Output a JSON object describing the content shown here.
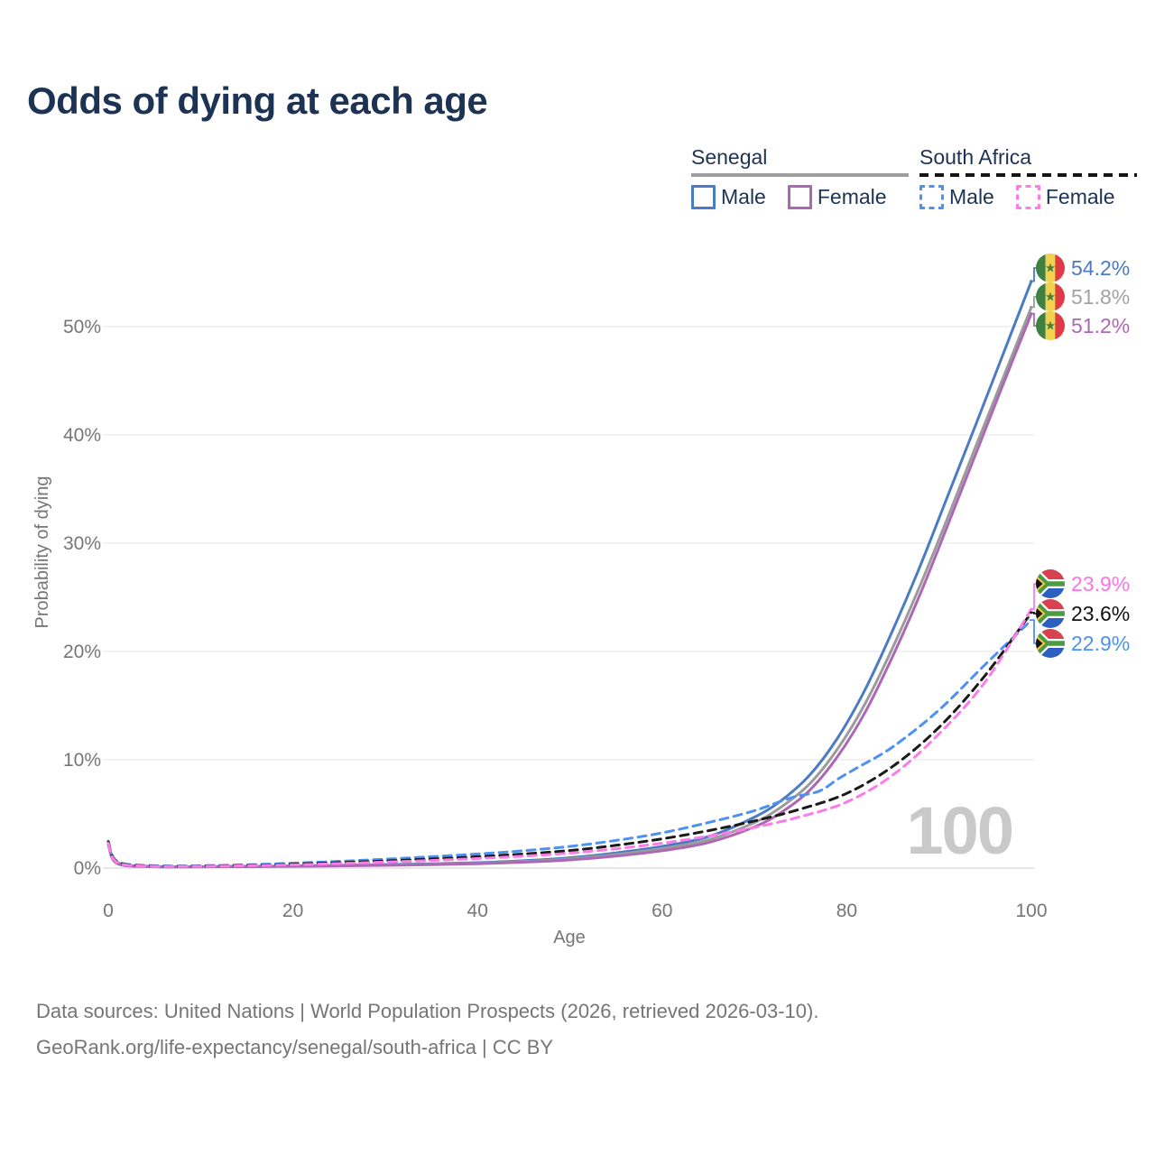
{
  "title": "Odds of dying at each age",
  "legend": {
    "groups": [
      {
        "name": "Senegal",
        "line_style": "solid",
        "underline_color": "#9e9e9e",
        "items": [
          {
            "label": "Male",
            "color": "#4a7bc4"
          },
          {
            "label": "Female",
            "color": "#ad68b5"
          }
        ]
      },
      {
        "name": "South Africa",
        "line_style": "dashed",
        "underline_color": "#141414",
        "items": [
          {
            "label": "Male",
            "color": "#4d92f0"
          },
          {
            "label": "Female",
            "color": "#fb7ce8"
          }
        ]
      }
    ]
  },
  "watermark_age": "100",
  "axes": {
    "x": {
      "label": "Age",
      "ticks": [
        0,
        20,
        40,
        60,
        80,
        100
      ]
    },
    "y": {
      "label": "Probability of dying",
      "ticks": [
        0,
        10,
        20,
        30,
        40,
        50
      ],
      "unit": "%"
    }
  },
  "chart_data": {
    "type": "line",
    "title": "Odds of dying at each age",
    "xlabel": "Age",
    "ylabel": "Probability of dying",
    "xlim": [
      0,
      100
    ],
    "ylim_percent": [
      0,
      56
    ],
    "grid": "horizontal",
    "legend_position": "top-right",
    "series": [
      {
        "id": "senegal-male",
        "name": "Senegal Male",
        "color": "#4a7bc4",
        "dash": "solid",
        "flag": "senegal",
        "end_label": "54.2%",
        "label_color": "#4a7bc4",
        "points": [
          [
            0,
            2.45
          ],
          [
            1,
            0.5
          ],
          [
            5,
            0.15
          ],
          [
            10,
            0.13
          ],
          [
            15,
            0.16
          ],
          [
            20,
            0.2
          ],
          [
            25,
            0.25
          ],
          [
            30,
            0.32
          ],
          [
            35,
            0.4
          ],
          [
            40,
            0.5
          ],
          [
            45,
            0.68
          ],
          [
            50,
            0.95
          ],
          [
            55,
            1.4
          ],
          [
            60,
            2.0
          ],
          [
            65,
            2.9
          ],
          [
            70,
            4.7
          ],
          [
            73,
            6.3
          ],
          [
            76,
            8.6
          ],
          [
            79,
            12.0
          ],
          [
            82,
            16.5
          ],
          [
            85,
            22.0
          ],
          [
            88,
            28.0
          ],
          [
            91,
            34.5
          ],
          [
            94,
            41.0
          ],
          [
            97,
            47.6
          ],
          [
            100,
            54.2
          ]
        ]
      },
      {
        "id": "senegal-total",
        "name": "Senegal Both sexes",
        "color": "#9b9b9b",
        "dash": "solid",
        "flag": "senegal",
        "end_label": "51.8%",
        "label_color": "#a3a3a3",
        "points": [
          [
            0,
            2.3
          ],
          [
            1,
            0.45
          ],
          [
            5,
            0.14
          ],
          [
            10,
            0.12
          ],
          [
            15,
            0.14
          ],
          [
            20,
            0.18
          ],
          [
            25,
            0.22
          ],
          [
            30,
            0.28
          ],
          [
            35,
            0.35
          ],
          [
            40,
            0.44
          ],
          [
            45,
            0.6
          ],
          [
            50,
            0.85
          ],
          [
            55,
            1.25
          ],
          [
            60,
            1.8
          ],
          [
            65,
            2.6
          ],
          [
            70,
            4.2
          ],
          [
            73,
            5.7
          ],
          [
            76,
            7.8
          ],
          [
            79,
            11.0
          ],
          [
            82,
            15.2
          ],
          [
            85,
            20.4
          ],
          [
            88,
            26.2
          ],
          [
            91,
            32.5
          ],
          [
            94,
            39.0
          ],
          [
            97,
            45.4
          ],
          [
            100,
            51.8
          ]
        ]
      },
      {
        "id": "senegal-female",
        "name": "Senegal Female",
        "color": "#ad68b5",
        "dash": "solid",
        "flag": "senegal",
        "end_label": "51.2%",
        "label_color": "#ad68b5",
        "points": [
          [
            0,
            2.15
          ],
          [
            1,
            0.4
          ],
          [
            5,
            0.13
          ],
          [
            10,
            0.11
          ],
          [
            15,
            0.13
          ],
          [
            20,
            0.16
          ],
          [
            25,
            0.2
          ],
          [
            30,
            0.25
          ],
          [
            35,
            0.31
          ],
          [
            40,
            0.4
          ],
          [
            45,
            0.54
          ],
          [
            50,
            0.75
          ],
          [
            55,
            1.1
          ],
          [
            60,
            1.6
          ],
          [
            65,
            2.35
          ],
          [
            70,
            3.8
          ],
          [
            73,
            5.2
          ],
          [
            76,
            7.2
          ],
          [
            79,
            10.3
          ],
          [
            82,
            14.4
          ],
          [
            85,
            19.6
          ],
          [
            88,
            25.4
          ],
          [
            91,
            31.8
          ],
          [
            94,
            38.3
          ],
          [
            97,
            44.8
          ],
          [
            100,
            51.2
          ]
        ]
      },
      {
        "id": "sa-male",
        "name": "South Africa Male",
        "color": "#4d92f0",
        "dash": "dashed",
        "flag": "south-africa",
        "end_label": "22.9%",
        "label_color": "#4d92f0",
        "points": [
          [
            0,
            2.5
          ],
          [
            1,
            0.6
          ],
          [
            5,
            0.22
          ],
          [
            10,
            0.22
          ],
          [
            15,
            0.3
          ],
          [
            20,
            0.45
          ],
          [
            25,
            0.62
          ],
          [
            30,
            0.82
          ],
          [
            35,
            1.05
          ],
          [
            40,
            1.3
          ],
          [
            45,
            1.6
          ],
          [
            50,
            2.0
          ],
          [
            55,
            2.55
          ],
          [
            60,
            3.25
          ],
          [
            65,
            4.2
          ],
          [
            70,
            5.3
          ],
          [
            74,
            6.5
          ],
          [
            77,
            7.1
          ],
          [
            79,
            8.2
          ],
          [
            81,
            9.2
          ],
          [
            85,
            11.2
          ],
          [
            90,
            14.6
          ],
          [
            95,
            18.8
          ],
          [
            100,
            22.9
          ]
        ]
      },
      {
        "id": "sa-total",
        "name": "South Africa Both sexes",
        "color": "#1a1a1a",
        "dash": "dashed",
        "flag": "south-africa",
        "end_label": "23.6%",
        "label_color": "#111111",
        "points": [
          [
            0,
            2.4
          ],
          [
            1,
            0.55
          ],
          [
            5,
            0.18
          ],
          [
            10,
            0.18
          ],
          [
            15,
            0.25
          ],
          [
            20,
            0.36
          ],
          [
            25,
            0.5
          ],
          [
            30,
            0.66
          ],
          [
            35,
            0.84
          ],
          [
            40,
            1.05
          ],
          [
            45,
            1.3
          ],
          [
            50,
            1.62
          ],
          [
            55,
            2.1
          ],
          [
            60,
            2.7
          ],
          [
            65,
            3.45
          ],
          [
            70,
            4.35
          ],
          [
            75,
            5.45
          ],
          [
            80,
            6.9
          ],
          [
            85,
            9.4
          ],
          [
            90,
            13.0
          ],
          [
            95,
            17.8
          ],
          [
            100,
            23.6
          ]
        ]
      },
      {
        "id": "sa-female",
        "name": "South Africa Female",
        "color": "#fb7ce8",
        "dash": "dashed",
        "flag": "south-africa",
        "end_label": "23.9%",
        "label_color": "#fb74e6",
        "points": [
          [
            0,
            2.3
          ],
          [
            1,
            0.5
          ],
          [
            5,
            0.16
          ],
          [
            10,
            0.16
          ],
          [
            15,
            0.22
          ],
          [
            20,
            0.3
          ],
          [
            25,
            0.42
          ],
          [
            30,
            0.55
          ],
          [
            35,
            0.7
          ],
          [
            40,
            0.88
          ],
          [
            45,
            1.1
          ],
          [
            50,
            1.38
          ],
          [
            55,
            1.78
          ],
          [
            60,
            2.3
          ],
          [
            65,
            2.95
          ],
          [
            70,
            3.75
          ],
          [
            75,
            4.75
          ],
          [
            80,
            6.1
          ],
          [
            85,
            8.6
          ],
          [
            90,
            12.4
          ],
          [
            95,
            17.2
          ],
          [
            100,
            23.9
          ]
        ]
      }
    ]
  },
  "footer": {
    "line1": "Data sources: United Nations | World Population Prospects (2026, retrieved 2026-03-10).",
    "line2": "GeoRank.org/life-expectancy/senegal/south-africa | CC BY"
  }
}
